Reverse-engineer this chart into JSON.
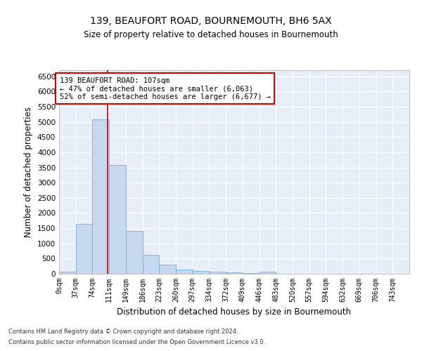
{
  "title": "139, BEAUFORT ROAD, BOURNEMOUTH, BH6 5AX",
  "subtitle": "Size of property relative to detached houses in Bournemouth",
  "xlabel": "Distribution of detached houses by size in Bournemouth",
  "ylabel": "Number of detached properties",
  "bar_color": "#c5d8f0",
  "bar_edge_color": "#7aafd4",
  "background_color": "#e8eef8",
  "grid_color": "#ffffff",
  "categories": [
    "0sqm",
    "37sqm",
    "74sqm",
    "111sqm",
    "149sqm",
    "186sqm",
    "223sqm",
    "260sqm",
    "297sqm",
    "334sqm",
    "372sqm",
    "409sqm",
    "446sqm",
    "483sqm",
    "520sqm",
    "557sqm",
    "594sqm",
    "632sqm",
    "669sqm",
    "706sqm",
    "743sqm"
  ],
  "values": [
    80,
    1650,
    5080,
    3580,
    1400,
    620,
    310,
    150,
    100,
    60,
    40,
    30,
    60,
    5,
    3,
    3,
    3,
    3,
    3,
    3,
    3
  ],
  "ylim": [
    0,
    6700
  ],
  "yticks": [
    0,
    500,
    1000,
    1500,
    2000,
    2500,
    3000,
    3500,
    4000,
    4500,
    5000,
    5500,
    6000,
    6500
  ],
  "property_size": 107,
  "vline_color": "#cc0000",
  "annotation_text": "139 BEAUFORT ROAD: 107sqm\n← 47% of detached houses are smaller (6,063)\n52% of semi-detached houses are larger (6,677) →",
  "annotation_box_color": "#ffffff",
  "annotation_box_edge": "#cc0000",
  "footer1": "Contains HM Land Registry data © Crown copyright and database right 2024.",
  "footer2": "Contains public sector information licensed under the Open Government Licence v3.0.",
  "bin_edges": [
    0,
    37,
    74,
    111,
    148,
    185,
    222,
    259,
    296,
    333,
    370,
    407,
    444,
    481,
    518,
    555,
    592,
    629,
    666,
    703,
    740,
    777
  ]
}
